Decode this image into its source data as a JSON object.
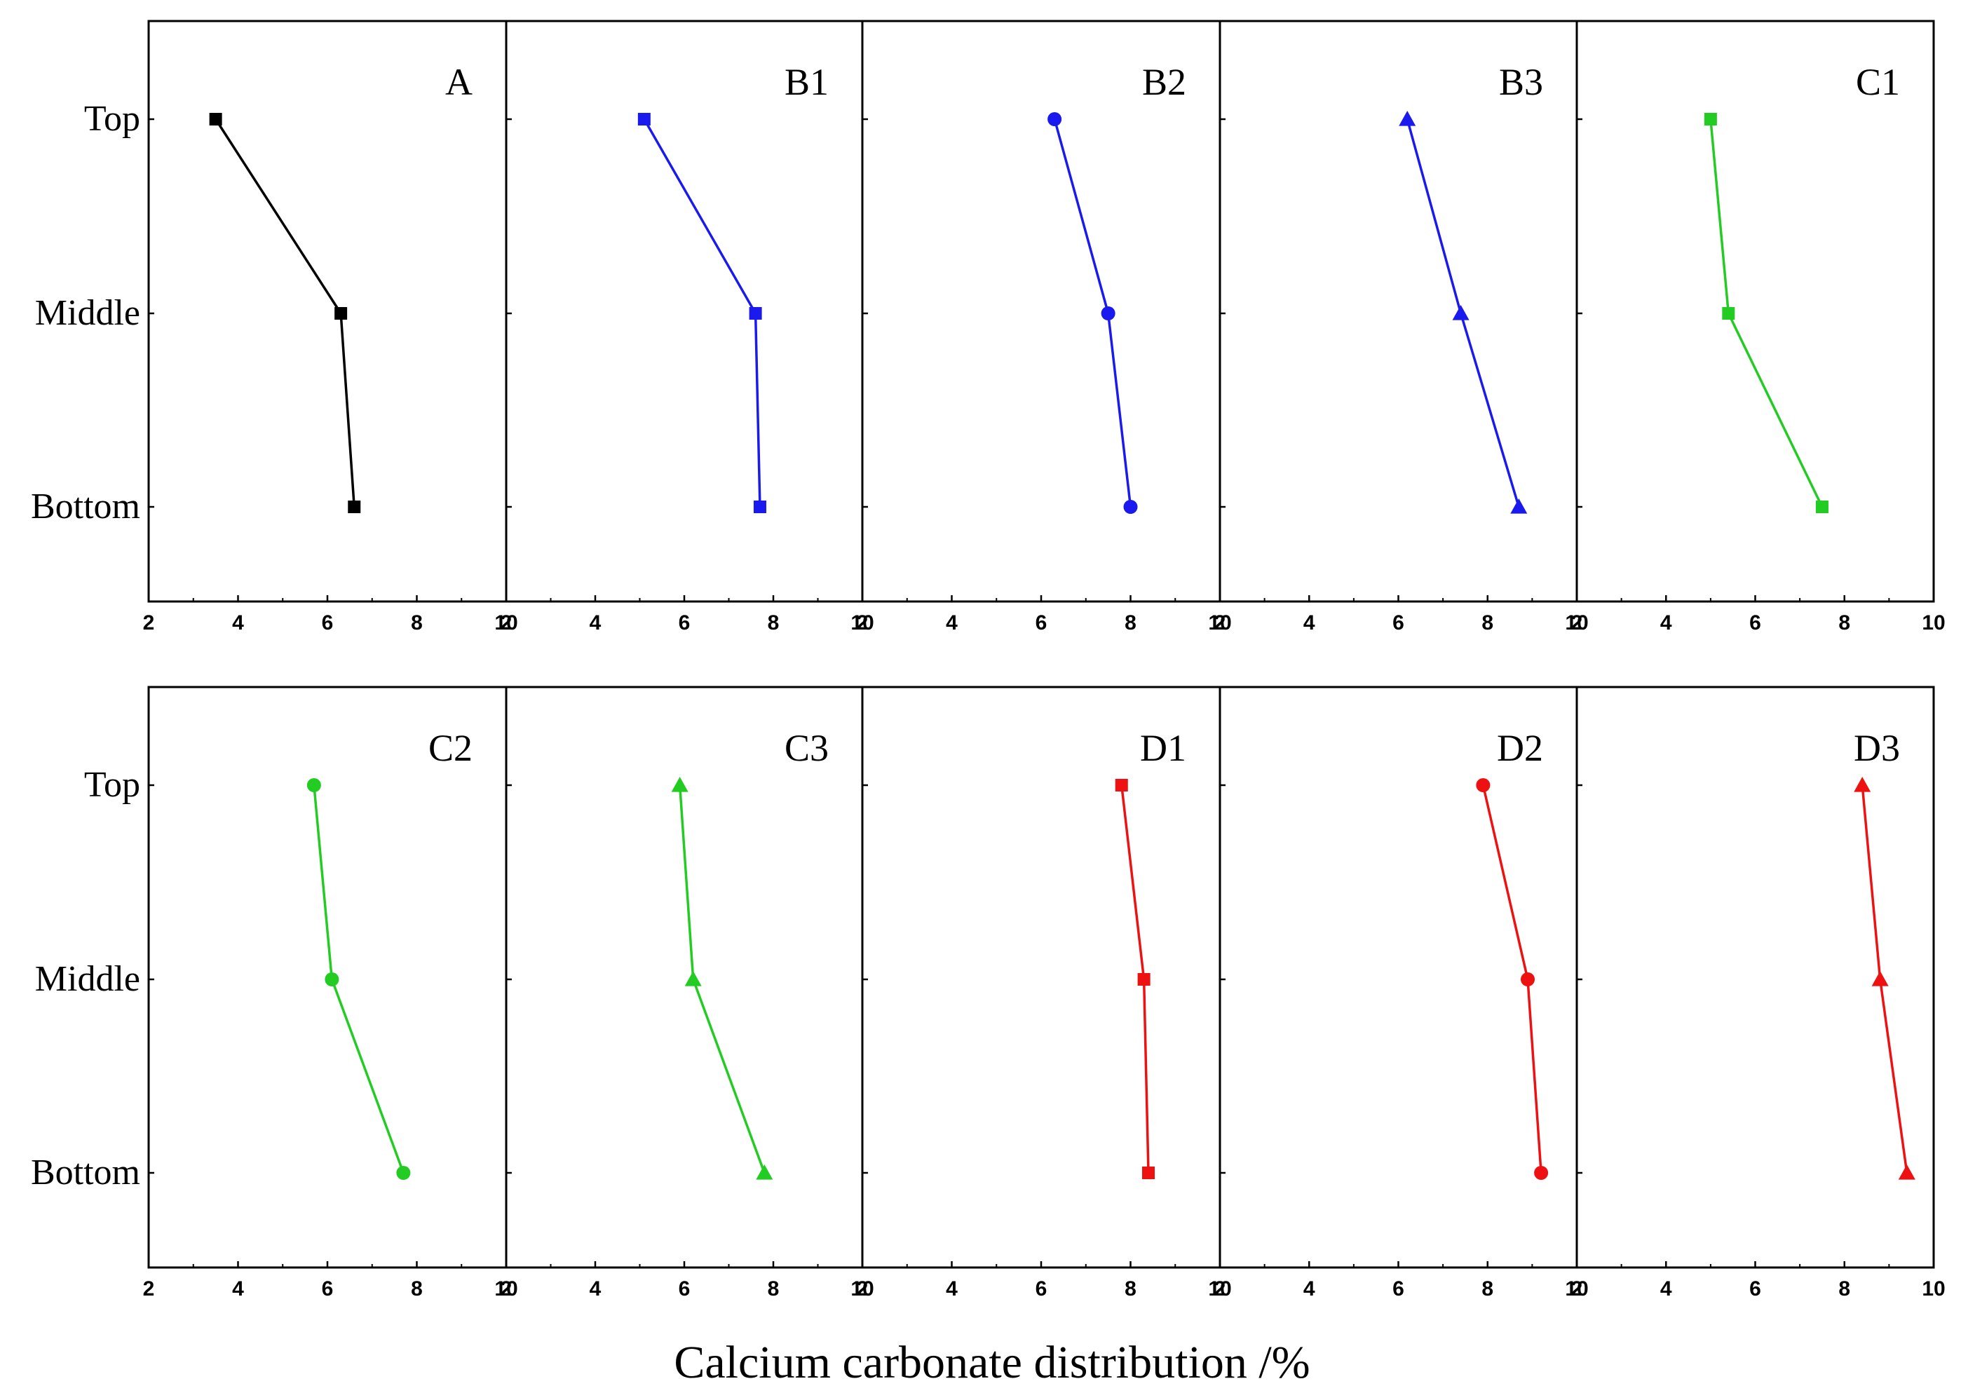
{
  "x_axis_label": "Calcium carbonate distribution /%",
  "chart_data": {
    "type": "line",
    "layout": "small-multiples 2x5",
    "xlabel": "Calcium carbonate distribution /%",
    "xlim": [
      2,
      10
    ],
    "x_ticks": [
      2,
      4,
      6,
      8,
      10
    ],
    "y_categories": [
      "Top",
      "Middle",
      "Bottom"
    ],
    "panels": [
      {
        "name": "A",
        "color": "#000000",
        "marker": "square",
        "x": [
          3.5,
          6.3,
          6.6
        ]
      },
      {
        "name": "B1",
        "color": "#1a1aee",
        "marker": "square",
        "x": [
          5.1,
          7.6,
          7.7
        ]
      },
      {
        "name": "B2",
        "color": "#1a1aee",
        "marker": "circle",
        "x": [
          6.3,
          7.5,
          8.0
        ]
      },
      {
        "name": "B3",
        "color": "#1a1aee",
        "marker": "triangle",
        "x": [
          6.2,
          7.4,
          8.7
        ]
      },
      {
        "name": "C1",
        "color": "#22cc22",
        "marker": "square",
        "x": [
          5.0,
          5.4,
          7.5
        ]
      },
      {
        "name": "C2",
        "color": "#22cc22",
        "marker": "circle",
        "x": [
          5.7,
          6.1,
          7.7
        ]
      },
      {
        "name": "C3",
        "color": "#22cc22",
        "marker": "triangle",
        "x": [
          5.9,
          6.2,
          7.8
        ]
      },
      {
        "name": "D1",
        "color": "#ee1111",
        "marker": "square",
        "x": [
          7.8,
          8.3,
          8.4
        ]
      },
      {
        "name": "D2",
        "color": "#ee1111",
        "marker": "circle",
        "x": [
          7.9,
          8.9,
          9.2
        ]
      },
      {
        "name": "D3",
        "color": "#ee1111",
        "marker": "triangle",
        "x": [
          8.4,
          8.8,
          9.4
        ]
      }
    ]
  }
}
